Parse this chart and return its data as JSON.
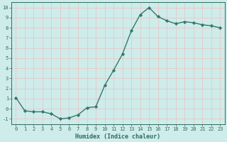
{
  "x": [
    0,
    1,
    2,
    3,
    4,
    5,
    6,
    7,
    8,
    9,
    10,
    11,
    12,
    13,
    14,
    15,
    16,
    17,
    18,
    19,
    20,
    21,
    22,
    23
  ],
  "y": [
    1.1,
    -0.2,
    -0.3,
    -0.3,
    -0.5,
    -1.0,
    -0.9,
    -0.6,
    0.1,
    0.2,
    2.3,
    3.8,
    5.4,
    7.7,
    9.3,
    10.0,
    9.1,
    8.7,
    8.4,
    8.6,
    8.5,
    8.3,
    8.2,
    8.0
  ],
  "xlabel": "Humidex (Indice chaleur)",
  "ylim": [
    -1.5,
    10.5
  ],
  "xlim": [
    -0.5,
    23.5
  ],
  "line_color": "#317a6b",
  "bg_color": "#ceecea",
  "grid_color": "#e8c8c8",
  "tick_color": "#2d6b5e",
  "marker": "D",
  "markersize": 2.2,
  "linewidth": 1.0,
  "yticks": [
    -1,
    0,
    1,
    2,
    3,
    4,
    5,
    6,
    7,
    8,
    9,
    10
  ],
  "xticks": [
    0,
    1,
    2,
    3,
    4,
    5,
    6,
    7,
    8,
    9,
    10,
    11,
    12,
    13,
    14,
    15,
    16,
    17,
    18,
    19,
    20,
    21,
    22,
    23
  ],
  "xlabel_fontsize": 6.0,
  "tick_fontsize": 5.0
}
